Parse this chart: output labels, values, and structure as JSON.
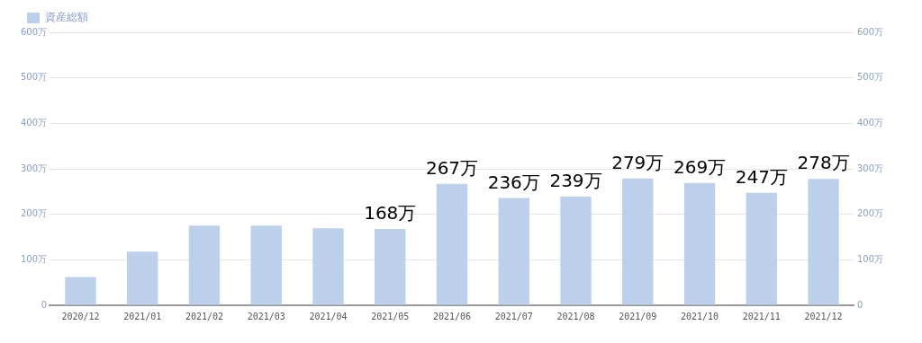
{
  "chart_data": {
    "type": "bar",
    "categories": [
      "2020/12",
      "2021/01",
      "2021/02",
      "2021/03",
      "2021/04",
      "2021/05",
      "2021/06",
      "2021/07",
      "2021/08",
      "2021/09",
      "2021/10",
      "2021/11",
      "2021/12"
    ],
    "series": [
      {
        "name": "資産総額",
        "color": "#bccfeb",
        "values": [
          62,
          118,
          175,
          175,
          169,
          168,
          267,
          236,
          239,
          279,
          269,
          247,
          278
        ],
        "value_labels": [
          null,
          null,
          null,
          null,
          null,
          "168万",
          "267万",
          "236万",
          "239万",
          "279万",
          "269万",
          "247万",
          "278万"
        ]
      }
    ],
    "ylim": [
      0,
      600
    ],
    "yticks": [
      0,
      {
        "value": 100,
        "label": "100万"
      },
      {
        "value": 200,
        "label": "200万"
      },
      {
        "value": 300,
        "label": "300万"
      },
      {
        "value": 400,
        "label": "400万"
      },
      {
        "value": 500,
        "label": "500万"
      },
      {
        "value": 600,
        "label": "600万"
      }
    ],
    "y2lim": [
      0,
      600
    ],
    "y2ticks": [
      0,
      {
        "value": 100,
        "label": "100万"
      },
      {
        "value": 200,
        "label": "200万"
      },
      {
        "value": 300,
        "label": "300万"
      },
      {
        "value": 400,
        "label": "400万"
      },
      {
        "value": 500,
        "label": "500万"
      },
      {
        "value": 600,
        "label": "600万"
      }
    ],
    "grid": "y",
    "legend": "top left"
  }
}
